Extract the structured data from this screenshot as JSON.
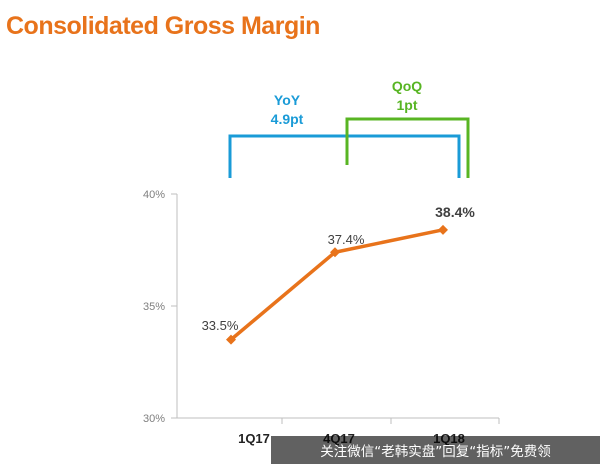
{
  "title": "Consolidated Gross Margin",
  "colors": {
    "title": "#e8731b",
    "line": "#e8731b",
    "yoy": "#1a9bd7",
    "qoq": "#58b523",
    "axis": "#bfbfbf",
    "tick_text": "#7f7f7f",
    "label_text": "#404040"
  },
  "brackets": {
    "yoy": {
      "label": "YoY",
      "value": "4.9pt"
    },
    "qoq": {
      "label": "QoQ",
      "value": "1pt"
    }
  },
  "chart_data": {
    "type": "line",
    "title": "Consolidated Gross Margin",
    "categories": [
      "1Q17",
      "4Q17",
      "1Q18"
    ],
    "values": [
      33.5,
      37.4,
      38.4
    ],
    "data_labels": [
      "33.5%",
      "37.4%",
      "38.4%"
    ],
    "ylim": [
      30,
      40
    ],
    "yticks": [
      30,
      35,
      40
    ],
    "ytick_labels": [
      "30%",
      "35%",
      "40%"
    ],
    "grid": false,
    "legend": "none"
  },
  "watermark": "关注微信“老韩实盘”回复“指标”免费领"
}
